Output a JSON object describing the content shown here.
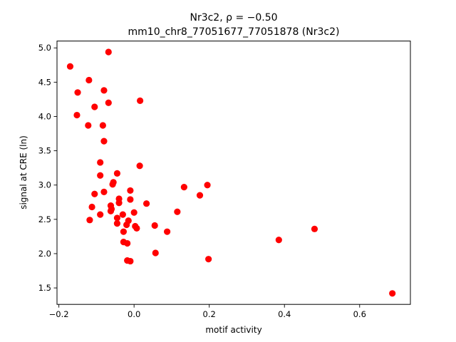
{
  "chart_data": {
    "type": "scatter",
    "title_line1": "Nr3c2, ρ = −0.50",
    "title_line2": "mm10_chr8_77051677_77051878 (Nr3c2)",
    "xlabel": "motif activity",
    "ylabel": "signal at CRE (ln)",
    "xlim": [
      -0.205,
      0.735
    ],
    "ylim": [
      1.26,
      5.1
    ],
    "xticks": [
      -0.2,
      0.0,
      0.2,
      0.4,
      0.6
    ],
    "xtick_labels": [
      "−0.2",
      "0.0",
      "0.2",
      "0.4",
      "0.6"
    ],
    "yticks": [
      1.5,
      2.0,
      2.5,
      3.0,
      3.5,
      4.0,
      4.5,
      5.0
    ],
    "ytick_labels": [
      "1.5",
      "2.0",
      "2.5",
      "3.0",
      "3.5",
      "4.0",
      "4.5",
      "5.0"
    ],
    "grid": false,
    "marker_color": "#ff0000",
    "points": [
      {
        "x": -0.17,
        "y": 4.73
      },
      {
        "x": -0.068,
        "y": 4.94
      },
      {
        "x": -0.12,
        "y": 4.53
      },
      {
        "x": -0.15,
        "y": 4.35
      },
      {
        "x": -0.08,
        "y": 4.38
      },
      {
        "x": -0.068,
        "y": 4.2
      },
      {
        "x": 0.016,
        "y": 4.23
      },
      {
        "x": -0.105,
        "y": 4.14
      },
      {
        "x": -0.152,
        "y": 4.02
      },
      {
        "x": -0.122,
        "y": 3.87
      },
      {
        "x": -0.083,
        "y": 3.87
      },
      {
        "x": -0.08,
        "y": 3.64
      },
      {
        "x": -0.09,
        "y": 3.33
      },
      {
        "x": 0.015,
        "y": 3.28
      },
      {
        "x": -0.045,
        "y": 3.17
      },
      {
        "x": -0.09,
        "y": 3.14
      },
      {
        "x": -0.055,
        "y": 3.04
      },
      {
        "x": -0.057,
        "y": 3.01
      },
      {
        "x": -0.08,
        "y": 2.9
      },
      {
        "x": -0.105,
        "y": 2.87
      },
      {
        "x": -0.01,
        "y": 2.92
      },
      {
        "x": 0.133,
        "y": 2.97
      },
      {
        "x": 0.195,
        "y": 3.0
      },
      {
        "x": 0.175,
        "y": 2.85
      },
      {
        "x": -0.04,
        "y": 2.8
      },
      {
        "x": -0.01,
        "y": 2.79
      },
      {
        "x": -0.04,
        "y": 2.74
      },
      {
        "x": 0.033,
        "y": 2.73
      },
      {
        "x": -0.062,
        "y": 2.7
      },
      {
        "x": -0.112,
        "y": 2.68
      },
      {
        "x": -0.06,
        "y": 2.65
      },
      {
        "x": -0.062,
        "y": 2.62
      },
      {
        "x": 0.115,
        "y": 2.61
      },
      {
        "x": 0.0,
        "y": 2.6
      },
      {
        "x": -0.09,
        "y": 2.57
      },
      {
        "x": -0.03,
        "y": 2.57
      },
      {
        "x": -0.045,
        "y": 2.52
      },
      {
        "x": -0.118,
        "y": 2.49
      },
      {
        "x": -0.015,
        "y": 2.48
      },
      {
        "x": -0.045,
        "y": 2.44
      },
      {
        "x": -0.02,
        "y": 2.42
      },
      {
        "x": 0.003,
        "y": 2.4
      },
      {
        "x": 0.055,
        "y": 2.41
      },
      {
        "x": 0.007,
        "y": 2.37
      },
      {
        "x": -0.028,
        "y": 2.32
      },
      {
        "x": 0.088,
        "y": 2.32
      },
      {
        "x": 0.48,
        "y": 2.36
      },
      {
        "x": 0.385,
        "y": 2.2
      },
      {
        "x": -0.028,
        "y": 2.17
      },
      {
        "x": -0.018,
        "y": 2.15
      },
      {
        "x": 0.057,
        "y": 2.01
      },
      {
        "x": 0.198,
        "y": 1.92
      },
      {
        "x": -0.018,
        "y": 1.9
      },
      {
        "x": -0.01,
        "y": 1.89
      },
      {
        "x": 0.687,
        "y": 1.42
      }
    ]
  }
}
